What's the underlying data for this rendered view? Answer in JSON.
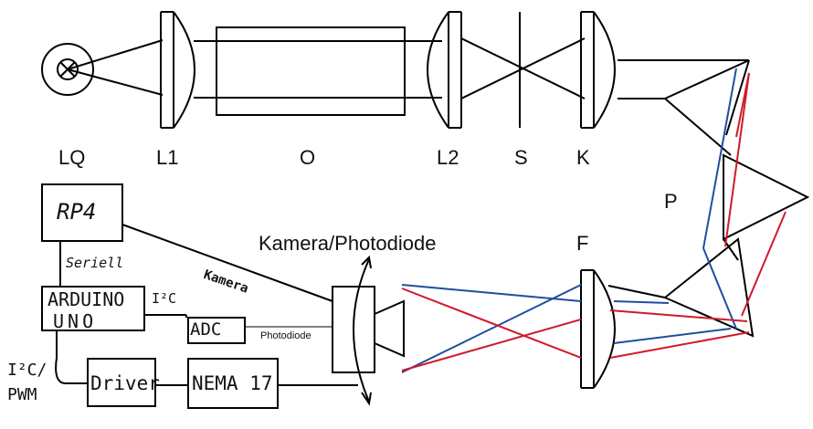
{
  "optics": {
    "lq": "LQ",
    "l1": "L1",
    "o": "O",
    "l2": "L2",
    "s": "S",
    "k": "K",
    "p": "P",
    "f": "F",
    "camera_photodiode": "Kamera/Photodiode"
  },
  "electronics": {
    "rp4": "RP4",
    "arduino_line1": "ARDUINO",
    "arduino_line2": "UNO",
    "adc": "ADC",
    "driver": "Driver",
    "nema": "NEMA 17",
    "seriell": "Seriell",
    "i2c": "I²C",
    "kamera_link": "Kamera",
    "photodiode_link": "Photodiode",
    "i2c_pwm_line1": "I²C/",
    "i2c_pwm_line2": "PWM"
  },
  "colors": {
    "blue_ray": "#1f4e9e",
    "red_ray": "#d01a2a",
    "line": "#000000"
  }
}
